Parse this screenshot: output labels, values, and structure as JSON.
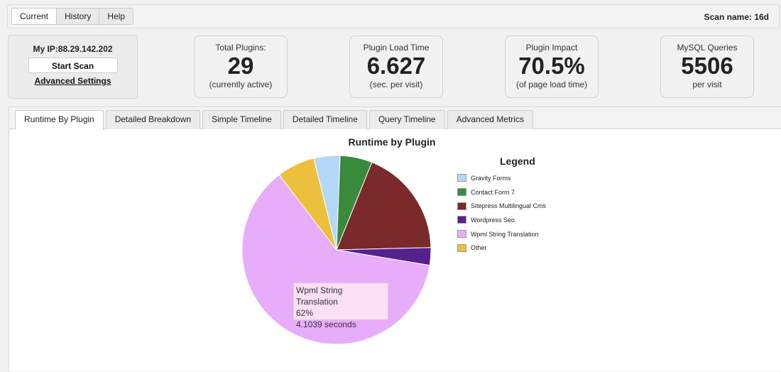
{
  "topbar": {
    "tabs": [
      {
        "label": "Current",
        "active": true
      },
      {
        "label": "History",
        "active": false
      },
      {
        "label": "Help",
        "active": false
      }
    ],
    "scan_name": "Scan name: 16d"
  },
  "scanner": {
    "ip_label": "My IP:",
    "ip_value": "88.29.142.202",
    "start_scan": "Start Scan",
    "advanced_settings": "Advanced Settings"
  },
  "stats": [
    {
      "label": "Total Plugins:",
      "value": "29",
      "sub": "(currently active)"
    },
    {
      "label": "Plugin Load Time",
      "value": "6.627",
      "sub": "(sec. per visit)"
    },
    {
      "label": "Plugin Impact",
      "value": "70.5%",
      "sub": "(of page load time)"
    },
    {
      "label": "MySQL Queries",
      "value": "5506",
      "sub": "per visit"
    }
  ],
  "tabs": [
    {
      "label": "Runtime By Plugin",
      "active": true
    },
    {
      "label": "Detailed Breakdown",
      "active": false
    },
    {
      "label": "Simple Timeline",
      "active": false
    },
    {
      "label": "Detailed Timeline",
      "active": false
    },
    {
      "label": "Query Timeline",
      "active": false
    },
    {
      "label": "Advanced Metrics",
      "active": false
    }
  ],
  "chart_data": {
    "type": "pie",
    "title": "Runtime by Plugin",
    "legend_title": "Legend",
    "legend_position": "right",
    "slices": [
      {
        "name": "Gravity Forms",
        "value": 4.5,
        "color": "#b3d8f8"
      },
      {
        "name": "Contact Form 7",
        "value": 5.5,
        "color": "#3a8a3c"
      },
      {
        "name": "Sitepress Multilingual Cms",
        "value": 18.5,
        "color": "#7a2a2a"
      },
      {
        "name": "Wordpress Seo",
        "value": 3.0,
        "color": "#55218c"
      },
      {
        "name": "Wpml String Translation",
        "value": 62,
        "color": "#e8adfa"
      },
      {
        "name": "Other",
        "value": 6.5,
        "color": "#ecc03c"
      }
    ],
    "tooltip": {
      "name": "Wpml String Translation",
      "percent": "62%",
      "seconds": "4.1039 seconds"
    }
  }
}
